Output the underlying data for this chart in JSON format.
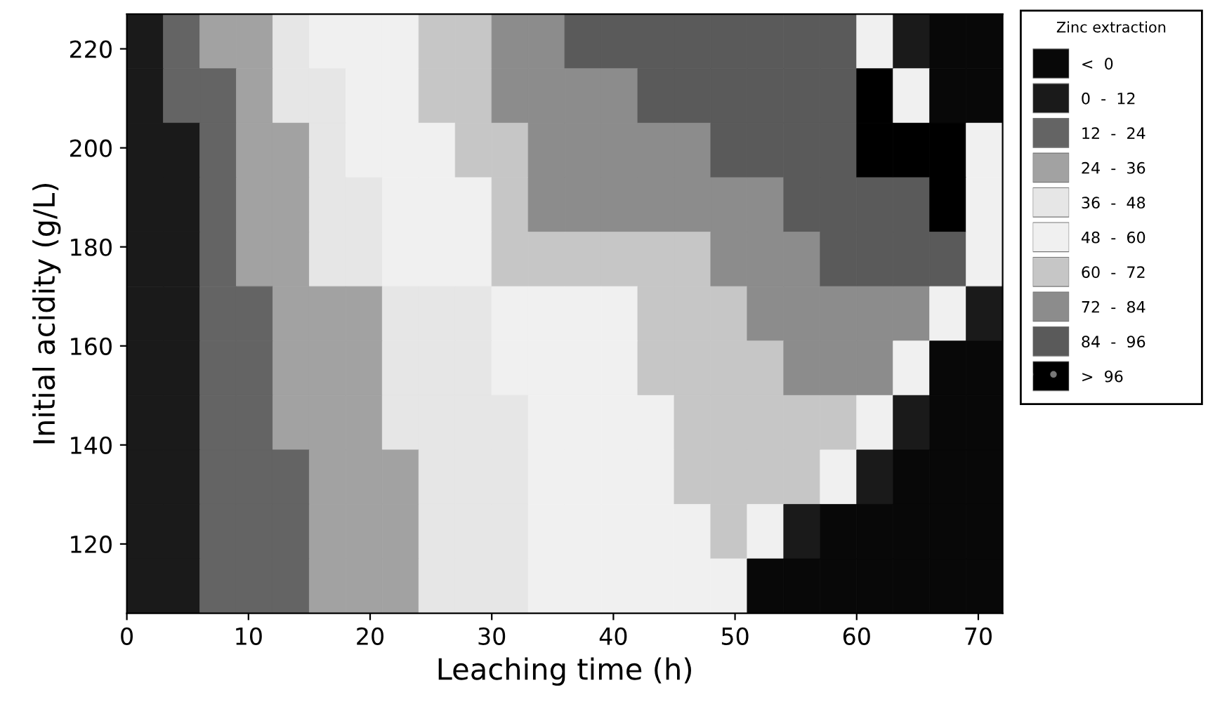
{
  "chart_data": {
    "type": "heatmap",
    "xlabel": "Leaching time (h)",
    "ylabel": "Initial acidity (g/L)",
    "clabel": "Zinc extraction",
    "x": [
      1.5,
      4.5,
      7.5,
      10.5,
      13.5,
      16.5,
      19.5,
      22.5,
      25.5,
      28.5,
      31.5,
      34.5,
      37.5,
      40.5,
      43.5,
      46.5,
      49.5,
      52.5,
      55.5,
      58.5,
      61.5,
      64.5,
      67.5,
      70.5
    ],
    "y": [
      221.5,
      210.5,
      199.5,
      188.5,
      177.5,
      166.5,
      155.5,
      144.5,
      133.5,
      122.5,
      111.5
    ],
    "cells": [
      [
        6,
        18,
        30,
        30,
        42,
        54,
        54,
        54,
        66,
        66,
        78,
        78,
        90,
        90,
        90,
        90,
        90,
        90,
        90,
        90,
        54,
        6,
        -6,
        -6
      ],
      [
        6,
        18,
        18,
        30,
        42,
        42,
        54,
        54,
        66,
        66,
        78,
        78,
        78,
        78,
        90,
        90,
        90,
        90,
        90,
        90,
        102,
        54,
        -6,
        -6
      ],
      [
        6,
        6,
        18,
        30,
        30,
        42,
        54,
        54,
        54,
        66,
        66,
        78,
        78,
        78,
        78,
        78,
        90,
        90,
        90,
        90,
        102,
        102,
        102,
        54
      ],
      [
        6,
        6,
        18,
        30,
        30,
        42,
        42,
        54,
        54,
        54,
        66,
        78,
        78,
        78,
        78,
        78,
        78,
        78,
        90,
        90,
        90,
        90,
        102,
        54
      ],
      [
        6,
        6,
        18,
        30,
        30,
        42,
        42,
        54,
        54,
        54,
        66,
        66,
        66,
        66,
        66,
        66,
        78,
        78,
        78,
        90,
        90,
        90,
        90,
        54
      ],
      [
        6,
        6,
        18,
        18,
        30,
        30,
        30,
        42,
        42,
        42,
        54,
        54,
        54,
        54,
        66,
        66,
        66,
        78,
        78,
        78,
        78,
        78,
        54,
        6
      ],
      [
        6,
        6,
        18,
        18,
        30,
        30,
        30,
        42,
        42,
        42,
        54,
        54,
        54,
        54,
        66,
        66,
        66,
        66,
        78,
        78,
        78,
        54,
        -6,
        -6
      ],
      [
        6,
        6,
        18,
        18,
        30,
        30,
        30,
        42,
        42,
        42,
        42,
        54,
        54,
        54,
        54,
        66,
        66,
        66,
        66,
        66,
        54,
        6,
        -6,
        -6
      ],
      [
        6,
        6,
        18,
        18,
        18,
        30,
        30,
        30,
        42,
        42,
        42,
        54,
        54,
        54,
        54,
        66,
        66,
        66,
        66,
        54,
        6,
        -6,
        -6,
        -6
      ],
      [
        6,
        6,
        18,
        18,
        18,
        30,
        30,
        30,
        42,
        42,
        42,
        54,
        54,
        54,
        54,
        54,
        66,
        54,
        6,
        -6,
        -6,
        -6,
        -6,
        -6
      ],
      [
        6,
        6,
        18,
        18,
        18,
        30,
        30,
        30,
        42,
        42,
        42,
        54,
        54,
        54,
        54,
        54,
        54,
        -6,
        -6,
        -6,
        -6,
        -6,
        -6,
        -6
      ]
    ],
    "clim": [
      -12,
      108
    ],
    "cticks": [
      {
        "value": -6,
        "label": "<  0"
      },
      {
        "value": 6,
        "label": "0  -  12"
      },
      {
        "value": 18,
        "label": "12  -  24"
      },
      {
        "value": 30,
        "label": "24  -  36"
      },
      {
        "value": 42,
        "label": "36  -  48"
      },
      {
        "value": 54,
        "label": "48  -  60"
      },
      {
        "value": 66,
        "label": "60  -  72"
      },
      {
        "value": 78,
        "label": "72  -  84"
      },
      {
        "value": 90,
        "label": "84  -  96"
      },
      {
        "value": 102,
        "label": ">  96"
      }
    ],
    "colors": [
      "#080808",
      "#1a1a1a",
      "#646464",
      "#a2a2a2",
      "#e6e6e6",
      "#f0f0f0",
      "#c6c6c6",
      "#8c8c8c",
      "#5a5a5a",
      "#000000"
    ],
    "xlim": [
      0,
      72
    ],
    "ylim": [
      106,
      227
    ],
    "xticks": [
      0,
      10,
      20,
      30,
      40,
      50,
      60,
      70
    ],
    "yticks": [
      120,
      140,
      160,
      180,
      200,
      220
    ],
    "grid": false
  }
}
